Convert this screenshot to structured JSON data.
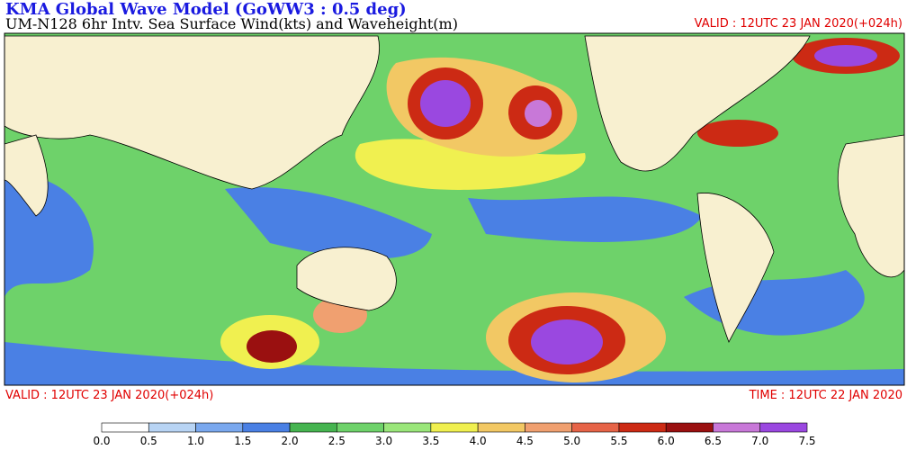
{
  "header": {
    "title": "KMA  Global Wave Model (GoWW3 : 0.5 deg)",
    "subtitle": "UM-N128  6hr Intv. Sea Surface Wind(kts) and Waveheight(m)",
    "valid": "VALID : 12UTC 23 JAN 2020(+024h)"
  },
  "footer": {
    "valid": "VALID : 12UTC 23 JAN 2020(+024h)",
    "time": "TIME : 12UTC 22 JAN 2020"
  },
  "colorbar": {
    "labels": [
      "0.0",
      "0.5",
      "1.0",
      "1.5",
      "2.0",
      "2.5",
      "3.0",
      "3.5",
      "4.0",
      "4.5",
      "5.0",
      "5.5",
      "6.0",
      "6.5",
      "7.0",
      "7.5"
    ],
    "colors": [
      "#ffffff",
      "#b8d4f4",
      "#7aa8ee",
      "#4a80e4",
      "#46b450",
      "#6ed26a",
      "#9ae67a",
      "#f0f050",
      "#f2c864",
      "#f0a070",
      "#e66448",
      "#cc2a14",
      "#9a1010",
      "#c878d8",
      "#9a48e0"
    ]
  }
}
